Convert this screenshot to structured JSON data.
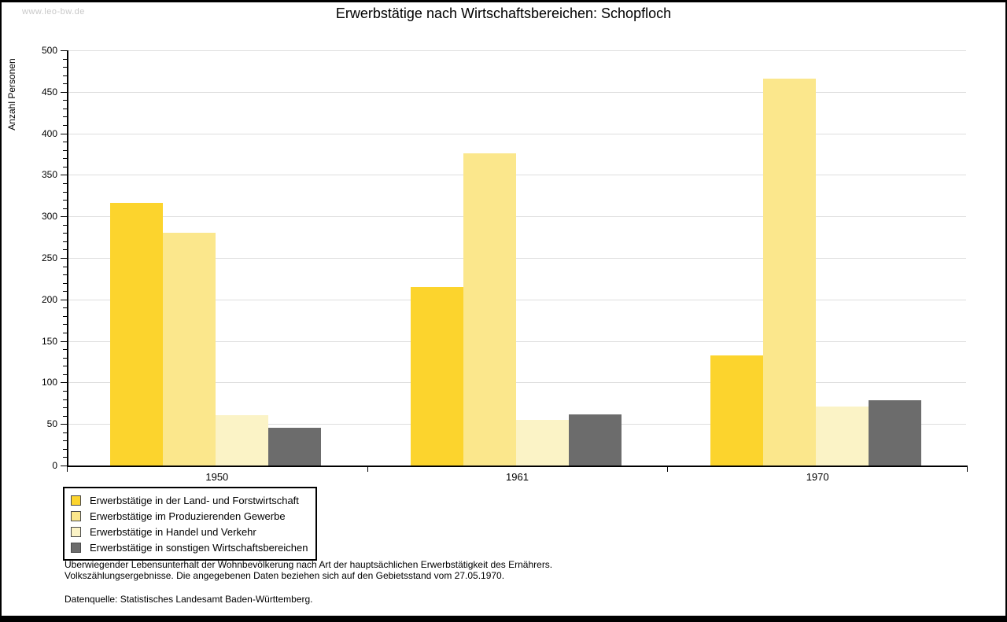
{
  "watermark": "www.leo-bw.de",
  "title": "Erwerbstätige nach Wirtschaftsbereichen: Schopfloch",
  "chart_data": {
    "type": "bar",
    "title": "Erwerbstätige nach Wirtschaftsbereichen: Schopfloch",
    "xlabel": "",
    "ylabel": "Anzahl Personen",
    "ylim": [
      0,
      500
    ],
    "ytick_step": 50,
    "yminor_step": 10,
    "grid": "horizontal-major",
    "legend_position": "bottom-left-boxed",
    "categories": [
      "1950",
      "1961",
      "1970"
    ],
    "series": [
      {
        "name": "Erwerbstätige in der Land- und Forstwirtschaft",
        "color": "#FCD42D",
        "values": [
          316,
          215,
          133
        ]
      },
      {
        "name": "Erwerbstätige im Produzierenden Gewerbe",
        "color": "#FBE78C",
        "values": [
          280,
          376,
          466
        ]
      },
      {
        "name": "Erwerbstätige in Handel und Verkehr",
        "color": "#FBF3C6",
        "values": [
          61,
          55,
          71
        ]
      },
      {
        "name": "Erwerbstätige in sonstigen Wirtschaftsbereichen",
        "color": "#6C6C6C",
        "values": [
          45,
          62,
          79
        ]
      }
    ]
  },
  "notes": {
    "line1": "Überwiegender Lebensunterhalt der Wohnbevölkerung nach Art der hauptsächlichen Erwerbstätigkeit des Ernährers.",
    "line2": "Volkszählungsergebnisse. Die angegebenen Daten beziehen sich auf den Gebietsstand vom 27.05.1970.",
    "source": "Datenquelle: Statistisches Landesamt Baden-Württemberg."
  },
  "colors": {
    "gridline": "#DEDEDE",
    "axis": "#000000",
    "watermark": "#C9C9C9"
  }
}
